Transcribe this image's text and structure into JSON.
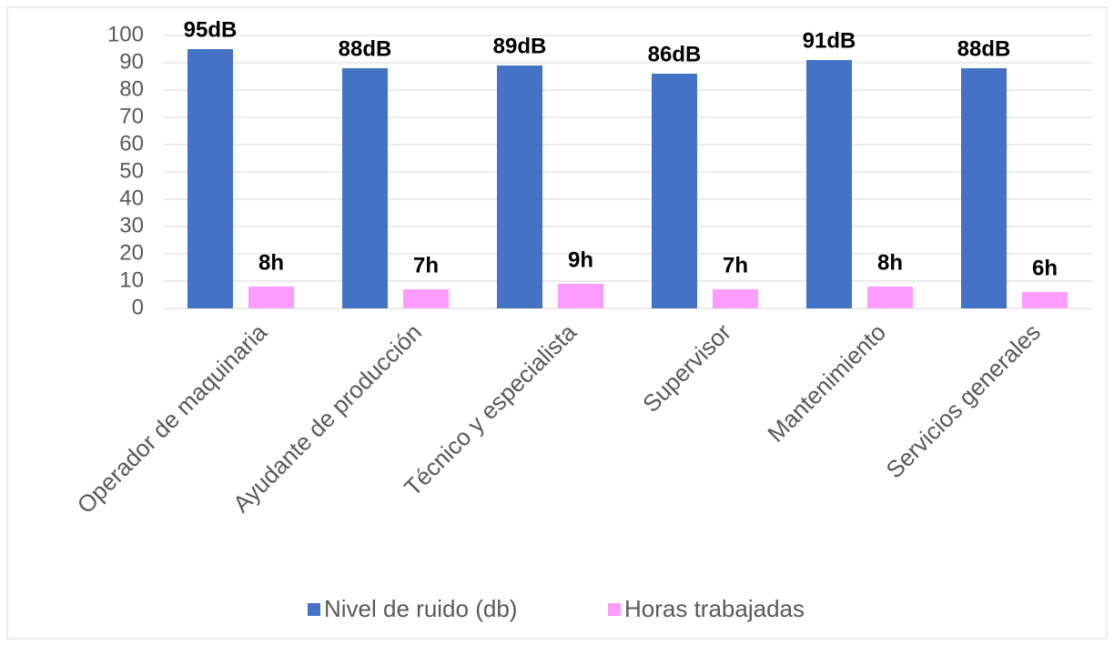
{
  "chart_data": {
    "type": "bar",
    "categories": [
      "Operador de maquinaria",
      "Ayudante de producción",
      "Técnico y especialista",
      "Supervisor",
      "Mantenimiento",
      "Servicios generales"
    ],
    "series": [
      {
        "name": "Nivel de ruido (db)",
        "color": "#4472c4",
        "values": [
          95,
          88,
          89,
          86,
          91,
          88
        ],
        "value_labels": [
          "95dB",
          "88dB",
          "89dB",
          "86dB",
          "91dB",
          "88dB"
        ]
      },
      {
        "name": "Horas trabajadas",
        "color": "#ff9cff",
        "values": [
          8,
          7,
          9,
          7,
          8,
          6
        ],
        "value_labels": [
          "8h",
          "7h",
          "9h",
          "7h",
          "8h",
          "6h"
        ]
      }
    ],
    "ylim": [
      0,
      100
    ],
    "yticks": [
      0,
      10,
      20,
      30,
      40,
      50,
      60,
      70,
      80,
      90,
      100
    ],
    "grid": true,
    "legend": "bottom"
  }
}
